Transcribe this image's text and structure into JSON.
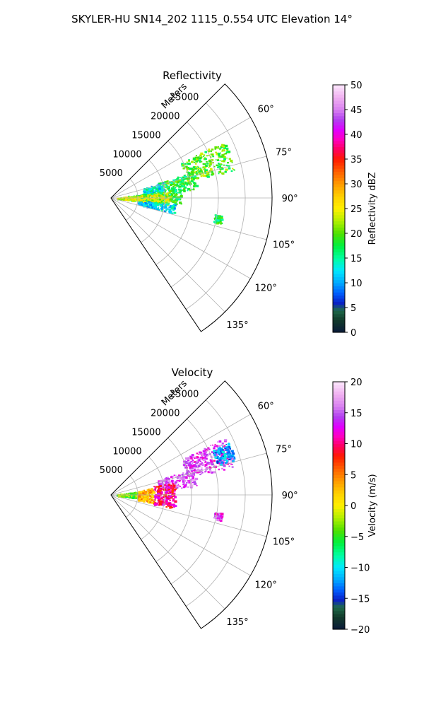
{
  "figure": {
    "suptitle": "SKYLER-HU  SN14_202  1115_0.554 UTC Elevation 14°"
  },
  "chart_data": [
    {
      "type": "polar-sector",
      "title": "Reflectivity",
      "radial_label": "Meters",
      "radial_ticks": [
        5000,
        10000,
        15000,
        20000,
        25000
      ],
      "radial_tick_labels": [
        "5000",
        "10000",
        "15000",
        "20000",
        "25000"
      ],
      "rmax": 30000,
      "azimuth_range": [
        45,
        146
      ],
      "azimuth_ticks": [
        60,
        75,
        90,
        105,
        120,
        135
      ],
      "azimuth_tick_labels": [
        "60°",
        "75°",
        "90°",
        "105°",
        "120°",
        "135°"
      ],
      "grid": true,
      "colorbar": {
        "label": "Reflectivity dBZ",
        "range": [
          0,
          50
        ],
        "ticks": [
          0,
          5,
          10,
          15,
          20,
          25,
          30,
          35,
          40,
          45,
          50
        ],
        "tick_labels": [
          "0",
          "5",
          "10",
          "15",
          "20",
          "25",
          "30",
          "35",
          "40",
          "45",
          "50"
        ]
      },
      "echo_regions": [
        {
          "az": [
            63,
            77
          ],
          "r": [
            14500,
            23500
          ],
          "value": 20
        },
        {
          "az": [
            72,
            84
          ],
          "r": [
            9000,
            16000
          ],
          "value": 18
        },
        {
          "az": [
            73,
            82
          ],
          "r": [
            6000,
            10000
          ],
          "value": 13
        },
        {
          "az": [
            82,
            95
          ],
          "r": [
            3000,
            13000
          ],
          "value": 17
        },
        {
          "az": [
            84,
            96
          ],
          "r": [
            1000,
            11000
          ],
          "value": 24
        },
        {
          "az": [
            95,
            104
          ],
          "r": [
            5000,
            12000
          ],
          "value": 12
        },
        {
          "az": [
            99,
            103
          ],
          "r": [
            19500,
            21000
          ],
          "value": 18
        }
      ]
    },
    {
      "type": "polar-sector",
      "title": "Velocity",
      "radial_label": "Meters",
      "radial_ticks": [
        5000,
        10000,
        15000,
        20000,
        25000
      ],
      "radial_tick_labels": [
        "5000",
        "10000",
        "15000",
        "20000",
        "25000"
      ],
      "rmax": 30000,
      "azimuth_range": [
        45,
        146
      ],
      "azimuth_ticks": [
        60,
        75,
        90,
        105,
        120,
        135
      ],
      "azimuth_tick_labels": [
        "60°",
        "75°",
        "90°",
        "105°",
        "120°",
        "135°"
      ],
      "grid": true,
      "colorbar": {
        "label": "Velocity (m/s)",
        "range": [
          -20,
          20
        ],
        "ticks": [
          -20,
          -15,
          -10,
          -5,
          0,
          5,
          10,
          15,
          20
        ],
        "tick_labels": [
          "−20",
          "−15",
          "−10",
          "−5",
          "0",
          "5",
          "10",
          "15",
          "20"
        ]
      },
      "echo_regions": [
        {
          "az": [
            63,
            77
          ],
          "r": [
            14500,
            23500
          ],
          "value": 14
        },
        {
          "az": [
            66,
            74
          ],
          "r": [
            20500,
            24000
          ],
          "value": -12
        },
        {
          "az": [
            72,
            84
          ],
          "r": [
            9000,
            16000
          ],
          "value": 15
        },
        {
          "az": [
            82,
            96
          ],
          "r": [
            1000,
            5000
          ],
          "value": -4
        },
        {
          "az": [
            80,
            100
          ],
          "r": [
            5000,
            8000
          ],
          "value": 3
        },
        {
          "az": [
            78,
            102
          ],
          "r": [
            8000,
            12000
          ],
          "value": 10
        },
        {
          "az": [
            99,
            103
          ],
          "r": [
            19500,
            21000
          ],
          "value": 14
        }
      ]
    }
  ]
}
